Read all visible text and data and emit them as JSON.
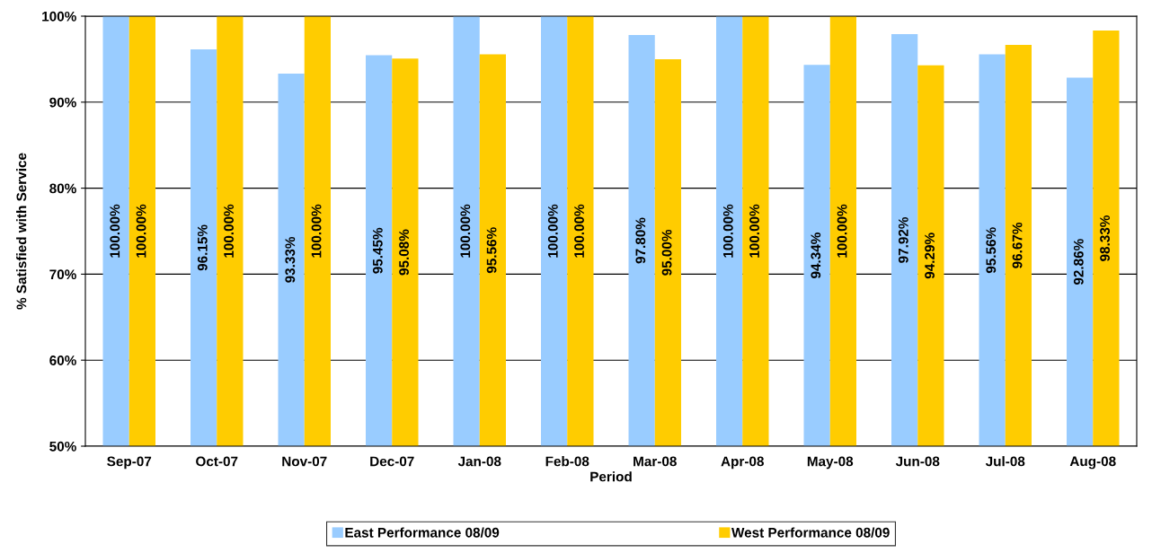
{
  "chart_data": {
    "type": "bar",
    "xlabel": "Period",
    "ylabel": "% Satisfied with Service",
    "categories": [
      "Sep-07",
      "Oct-07",
      "Nov-07",
      "Dec-07",
      "Jan-08",
      "Feb-08",
      "Mar-08",
      "Apr-08",
      "May-08",
      "Jun-08",
      "Jul-08",
      "Aug-08"
    ],
    "series": [
      {
        "name": "East Performance 08/09",
        "color": "#99ccff",
        "values": [
          100,
          96.15,
          93.33,
          95.45,
          100,
          100,
          97.8,
          100,
          94.34,
          97.92,
          95.56,
          92.86
        ],
        "value_labels": [
          "100.00%",
          "96.15%",
          "93.33%",
          "95.45%",
          "100.00%",
          "100.00%",
          "97.80%",
          "100.00%",
          "94.34%",
          "97.92%",
          "95.56%",
          "92.86%"
        ]
      },
      {
        "name": "West Performance 08/09",
        "color": "#ffcc00",
        "values": [
          100,
          100,
          100,
          95.08,
          95.56,
          100,
          95,
          100,
          100,
          94.29,
          96.67,
          98.33
        ],
        "value_labels": [
          "100.00%",
          "100.00%",
          "100.00%",
          "95.08%",
          "95.56%",
          "100.00%",
          "95.00%",
          "100.00%",
          "100.00%",
          "94.29%",
          "96.67%",
          "98.33%"
        ]
      }
    ],
    "ylim": [
      50,
      100
    ],
    "yticks": [
      {
        "value": 50,
        "label": "50%"
      },
      {
        "value": 60,
        "label": "60%"
      },
      {
        "value": 70,
        "label": "70%"
      },
      {
        "value": 80,
        "label": "80%"
      },
      {
        "value": 90,
        "label": "90%"
      },
      {
        "value": 100,
        "label": "100%"
      }
    ],
    "grid": "y",
    "legend": "bottom"
  }
}
